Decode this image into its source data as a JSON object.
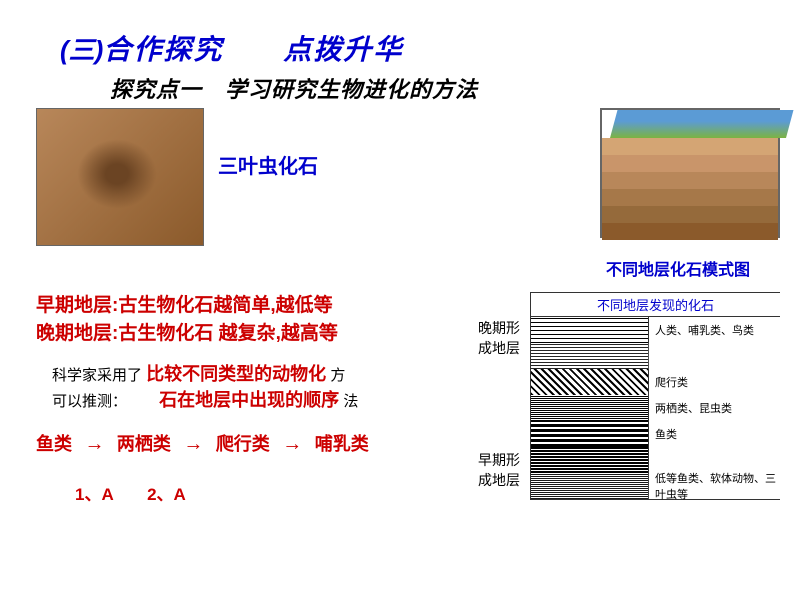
{
  "title": {
    "prefix": "(三)",
    "main": "合作探究　　点拨升华"
  },
  "subtitle": "探究点一　学习研究生物进化的方法",
  "fossil_label": "三叶虫化石",
  "strata_caption": "不同地层化石模式图",
  "early_layer_text": "早期地层:古生物化石越简单,越低等",
  "late_layer_text": "晚期地层:古生物化石 越复杂,越高等",
  "scientist": {
    "l1_black1": "科学家采用了",
    "l1_red": "比较不同类型的动物化",
    "l1_black2": "方",
    "l2_black1": "可以推测：",
    "l2_red": "石在地层中出现的顺序",
    "l2_black2": "法"
  },
  "evolution": {
    "e1": "鱼类",
    "e2": "两栖类",
    "e3": "爬行类",
    "e4": "哺乳类"
  },
  "answers": "1、A　　2、A",
  "chart": {
    "title": "不同地层发现的化石",
    "rows": [
      "人类、哺乳类、鸟类",
      "",
      "爬行类",
      "两栖类、昆虫类",
      "鱼类",
      "",
      "低等鱼类、软体动物、三叶虫等"
    ]
  },
  "side_labels": {
    "late": "晚期形成地层",
    "early": "早期形成地层"
  },
  "colors": {
    "title_blue": "#0000cc",
    "red": "#cc0000",
    "black": "#000000"
  }
}
